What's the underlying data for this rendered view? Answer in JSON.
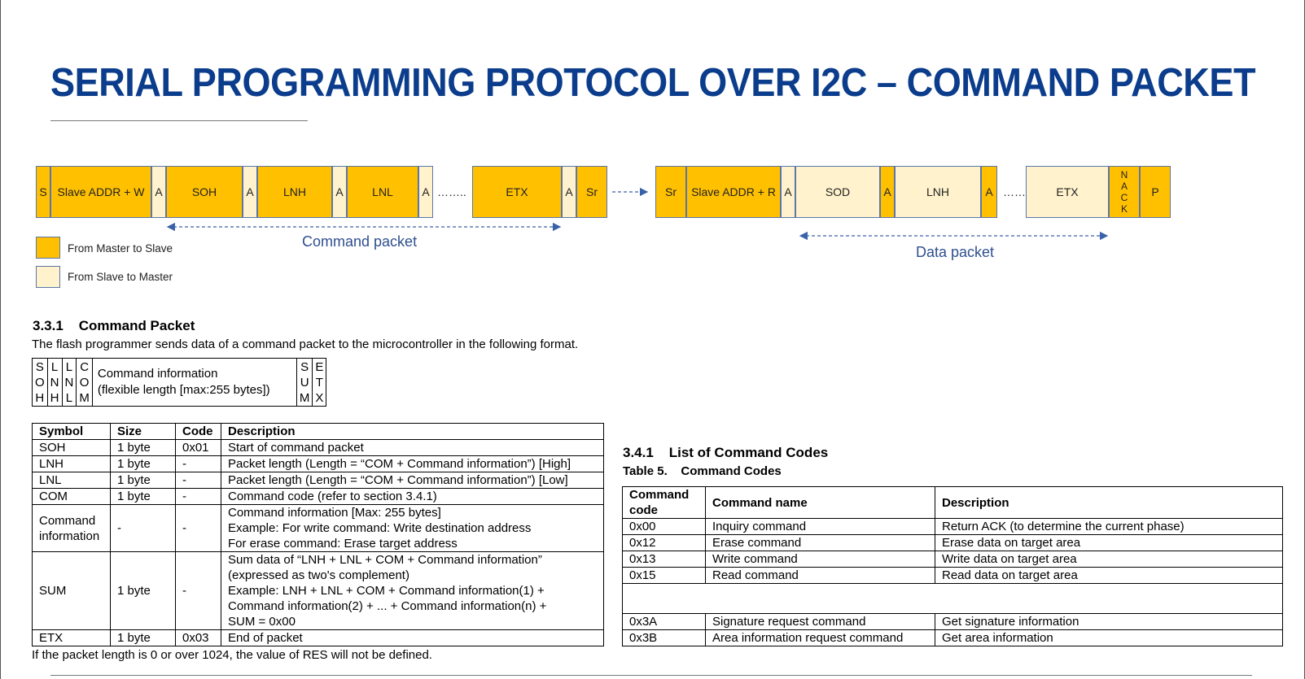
{
  "title": "SERIAL PROGRAMMING PROTOCOL OVER I2C – COMMAND PACKET",
  "colors": {
    "master_to_slave": "#ffc000",
    "slave_to_master": "#fff2cc",
    "title": "#0b3d8c",
    "caption": "#2f4f8f"
  },
  "packet": {
    "command_cells": [
      "S",
      "Slave ADDR + W",
      "A",
      "SOH",
      "A",
      "LNH",
      "A",
      "LNL",
      "A",
      "ETX",
      "A",
      "Sr"
    ],
    "command_dots": "……..",
    "data_cells": [
      "Sr",
      "Slave ADDR + R",
      "A",
      "SOD",
      "A",
      "LNH",
      "A",
      "ETX",
      "NACK",
      "P"
    ],
    "data_dots": "……",
    "nack_letters": [
      "N",
      "A",
      "C",
      "K"
    ],
    "command_caption": "Command packet",
    "data_caption": "Data packet"
  },
  "legend": {
    "master": "From Master to Slave",
    "slave": "From Slave to Master"
  },
  "section_331": {
    "number": "3.3.1",
    "heading": "Command Packet",
    "intro": "The flash programmer sends data of a command packet to the microcontroller in the following format.",
    "format": {
      "soh": [
        "S",
        "O",
        "H"
      ],
      "lnh": [
        "L",
        "N",
        "H"
      ],
      "lnl": [
        "L",
        "N",
        "L"
      ],
      "com": [
        "C",
        "O",
        "M"
      ],
      "info_line1": "Command information",
      "info_line2": "(flexible length [max:255 bytes])",
      "sum": [
        "S",
        "U",
        "M"
      ],
      "etx": [
        "E",
        "T",
        "X"
      ]
    },
    "table_headers": {
      "symbol": "Symbol",
      "size": "Size",
      "code": "Code",
      "description": "Description"
    },
    "rows": [
      {
        "symbol": "SOH",
        "size": "1 byte",
        "code": "0x01",
        "desc": [
          "Start of command packet"
        ]
      },
      {
        "symbol": "LNH",
        "size": "1 byte",
        "code": "-",
        "desc": [
          "Packet length (Length = “COM + Command information”) [High]"
        ]
      },
      {
        "symbol": "LNL",
        "size": "1 byte",
        "code": "-",
        "desc": [
          "Packet length (Length = “COM + Command information”) [Low]"
        ]
      },
      {
        "symbol": "COM",
        "size": "1 byte",
        "code": "-",
        "desc": [
          "Command code (refer to section 3.4.1)"
        ]
      },
      {
        "symbol": "Command information",
        "size": "-",
        "code": "-",
        "desc": [
          "Command information [Max: 255 bytes]",
          "Example: For write command: Write destination address",
          "For erase command: Erase target address"
        ]
      },
      {
        "symbol": "SUM",
        "size": "1 byte",
        "code": "-",
        "desc": [
          "Sum data of “LNH + LNL + COM + Command information”",
          "(expressed as two's complement)",
          "Example: LNH + LNL + COM + Command information(1) +",
          "Command information(2) + ... + Command information(n) +",
          "SUM = 0x00"
        ]
      },
      {
        "symbol": "ETX",
        "size": "1 byte",
        "code": "0x03",
        "desc": [
          "End of packet"
        ]
      }
    ],
    "note": "If the packet length is 0 or over 1024, the value of RES will not be defined."
  },
  "section_341": {
    "number": "3.4.1",
    "heading": "List of Command Codes",
    "table_label": "Table 5.",
    "table_title": "Command Codes",
    "headers": {
      "code": "Command code",
      "name": "Command name",
      "description": "Description"
    },
    "rows": [
      {
        "code": "0x00",
        "name": "Inquiry command",
        "desc": "Return ACK (to determine the current phase)"
      },
      {
        "code": "0x12",
        "name": "Erase command",
        "desc": "Erase data on target area"
      },
      {
        "code": "0x13",
        "name": "Write command",
        "desc": "Write data on target area"
      },
      {
        "code": "0x15",
        "name": "Read command",
        "desc": "Read data on target area"
      },
      {
        "code": "",
        "name": "",
        "desc": ""
      },
      {
        "code": "0x3A",
        "name": "Signature request command",
        "desc": "Get signature information"
      },
      {
        "code": "0x3B",
        "name": "Area information request command",
        "desc": "Get area information"
      }
    ]
  }
}
